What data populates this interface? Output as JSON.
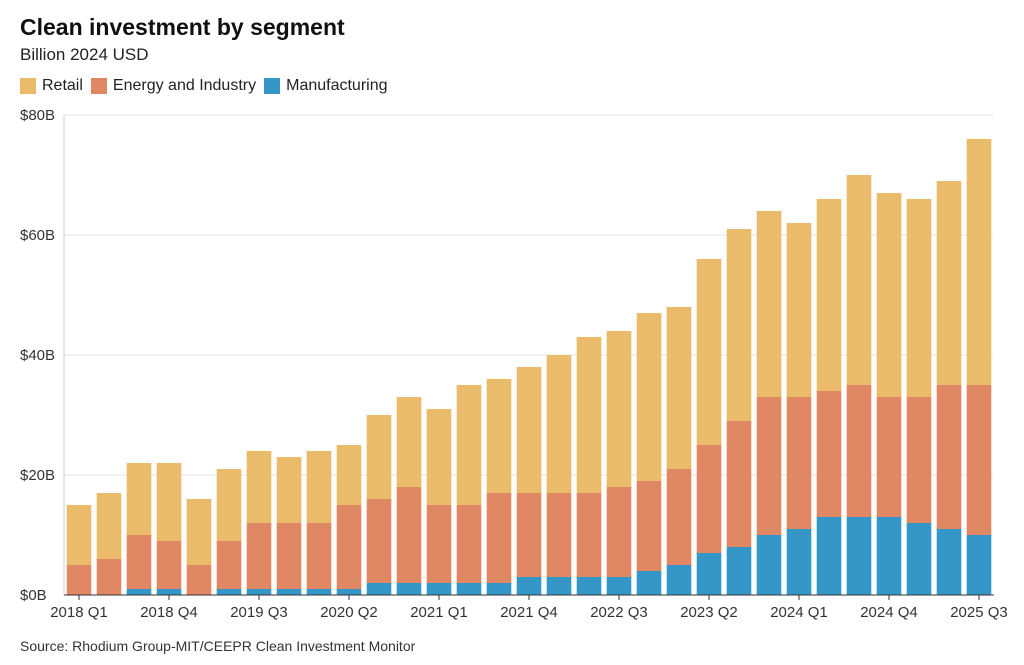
{
  "title": "Clean investment by segment",
  "subtitle": "Billion 2024 USD",
  "source": "Source: Rhodium Group-MIT/CEEPR Clean Investment Monitor",
  "colors": {
    "Retail": "#e9bb6a",
    "Energy and Industry": "#e08763",
    "Manufacturing": "#3597c7"
  },
  "chart_data": {
    "type": "bar",
    "stacked": true,
    "y_tick_labels": [
      "$0B",
      "$20B",
      "$40B",
      "$60B",
      "$80B"
    ],
    "ylim": [
      0,
      80
    ],
    "x_tick_labels": [
      "2018 Q1",
      "2018 Q4",
      "2019 Q3",
      "2020 Q2",
      "2021 Q1",
      "2021 Q4",
      "2022 Q3",
      "2023 Q2",
      "2024 Q1",
      "2024 Q4",
      "2025 Q3"
    ],
    "categories": [
      "2018 Q1",
      "2018 Q2",
      "2018 Q3",
      "2018 Q4",
      "2019 Q1",
      "2019 Q2",
      "2019 Q3",
      "2019 Q4",
      "2020 Q1",
      "2020 Q2",
      "2020 Q3",
      "2020 Q4",
      "2021 Q1",
      "2021 Q2",
      "2021 Q3",
      "2021 Q4",
      "2022 Q1",
      "2022 Q2",
      "2022 Q3",
      "2022 Q4",
      "2023 Q1",
      "2023 Q2",
      "2023 Q3",
      "2023 Q4",
      "2024 Q1",
      "2024 Q2",
      "2024 Q3",
      "2024 Q4",
      "2025 Q1",
      "2025 Q2",
      "2025 Q3"
    ],
    "series": [
      {
        "name": "Manufacturing",
        "values": [
          0,
          0,
          1,
          1,
          0,
          1,
          1,
          1,
          1,
          1,
          2,
          2,
          2,
          2,
          2,
          3,
          3,
          3,
          3,
          4,
          5,
          7,
          8,
          10,
          11,
          13,
          13,
          13,
          12,
          11,
          10
        ]
      },
      {
        "name": "Energy and Industry",
        "values": [
          5,
          6,
          9,
          8,
          5,
          8,
          11,
          11,
          11,
          14,
          14,
          16,
          13,
          13,
          15,
          14,
          14,
          14,
          15,
          15,
          16,
          18,
          21,
          23,
          22,
          21,
          22,
          20,
          21,
          24,
          25
        ]
      },
      {
        "name": "Retail",
        "values": [
          10,
          11,
          12,
          13,
          11,
          12,
          12,
          11,
          12,
          10,
          14,
          15,
          16,
          20,
          19,
          21,
          23,
          26,
          26,
          28,
          27,
          31,
          32,
          31,
          29,
          32,
          35,
          34,
          33,
          34,
          41
        ]
      }
    ]
  }
}
